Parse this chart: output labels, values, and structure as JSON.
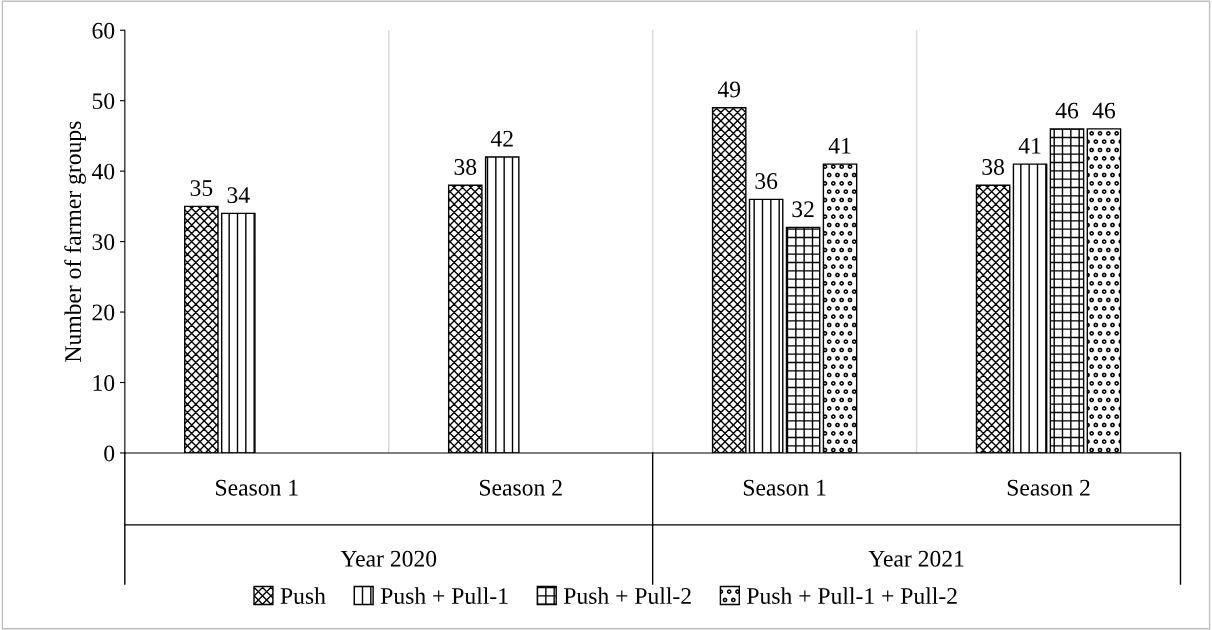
{
  "chart_data": {
    "type": "bar",
    "ylabel": "Number of farmer groups",
    "categories": [
      "Season 1",
      "Season 2",
      "Season 1",
      "Season 2"
    ],
    "annotations": [
      "Year 2020",
      "Year 2021"
    ],
    "series": [
      {
        "name": "Push",
        "color": "#000000",
        "values": [
          35,
          38,
          49,
          38
        ]
      },
      {
        "name": "Push + Pull-1",
        "color": "#000000",
        "values": [
          34,
          42,
          36,
          41
        ]
      },
      {
        "name": "Push + Pull-2",
        "color": "#000000",
        "values": [
          null,
          null,
          32,
          46
        ]
      },
      {
        "name": "Push + Pull-1 + Pull-2",
        "color": "#000000",
        "values": [
          null,
          null,
          41,
          46
        ]
      }
    ],
    "ylim": [
      0,
      60
    ],
    "yticks": [
      0,
      10,
      20,
      30,
      40,
      50,
      60
    ],
    "data_labels": true,
    "grid": false,
    "legend": "bottom"
  }
}
